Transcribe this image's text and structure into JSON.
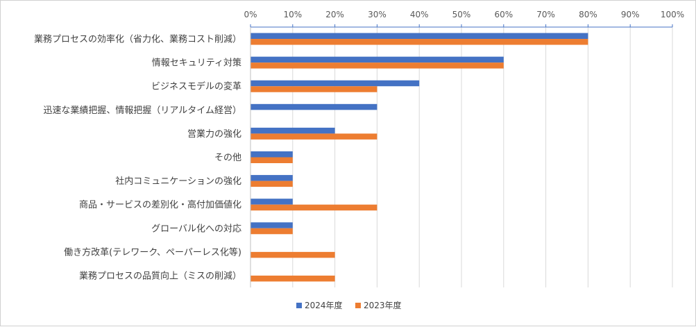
{
  "chart_data": {
    "type": "bar",
    "orientation": "horizontal",
    "categories": [
      "業務プロセスの効率化（省力化、業務コスト削減）",
      "情報セキュリティ対策",
      "ビジネスモデルの変革",
      "迅速な業績把握、情報把握（リアルタイム経営）",
      "営業力の強化",
      "その他",
      "社内コミュニケーションの強化",
      "商品・サービスの差別化・高付加価値化",
      "グローバル化への対応",
      "働き方改革(テレワーク、ペーパーレス化等)",
      "業務プロセスの品質向上（ミスの削減）"
    ],
    "series": [
      {
        "name": "2024年度",
        "color": "#4472C4",
        "values": [
          80,
          60,
          40,
          30,
          20,
          10,
          10,
          10,
          10,
          0,
          0
        ]
      },
      {
        "name": "2023年度",
        "color": "#ED7D31",
        "values": [
          80,
          60,
          30,
          0,
          30,
          10,
          10,
          30,
          10,
          20,
          20
        ]
      }
    ],
    "xlim": [
      0,
      100
    ],
    "x_ticks": [
      "0%",
      "10%",
      "20%",
      "30%",
      "40%",
      "50%",
      "60%",
      "70%",
      "80%",
      "90%",
      "100%"
    ],
    "x_axis_position": "top",
    "grid": true,
    "legend_position": "bottom",
    "title": "",
    "xlabel": "",
    "ylabel": ""
  }
}
